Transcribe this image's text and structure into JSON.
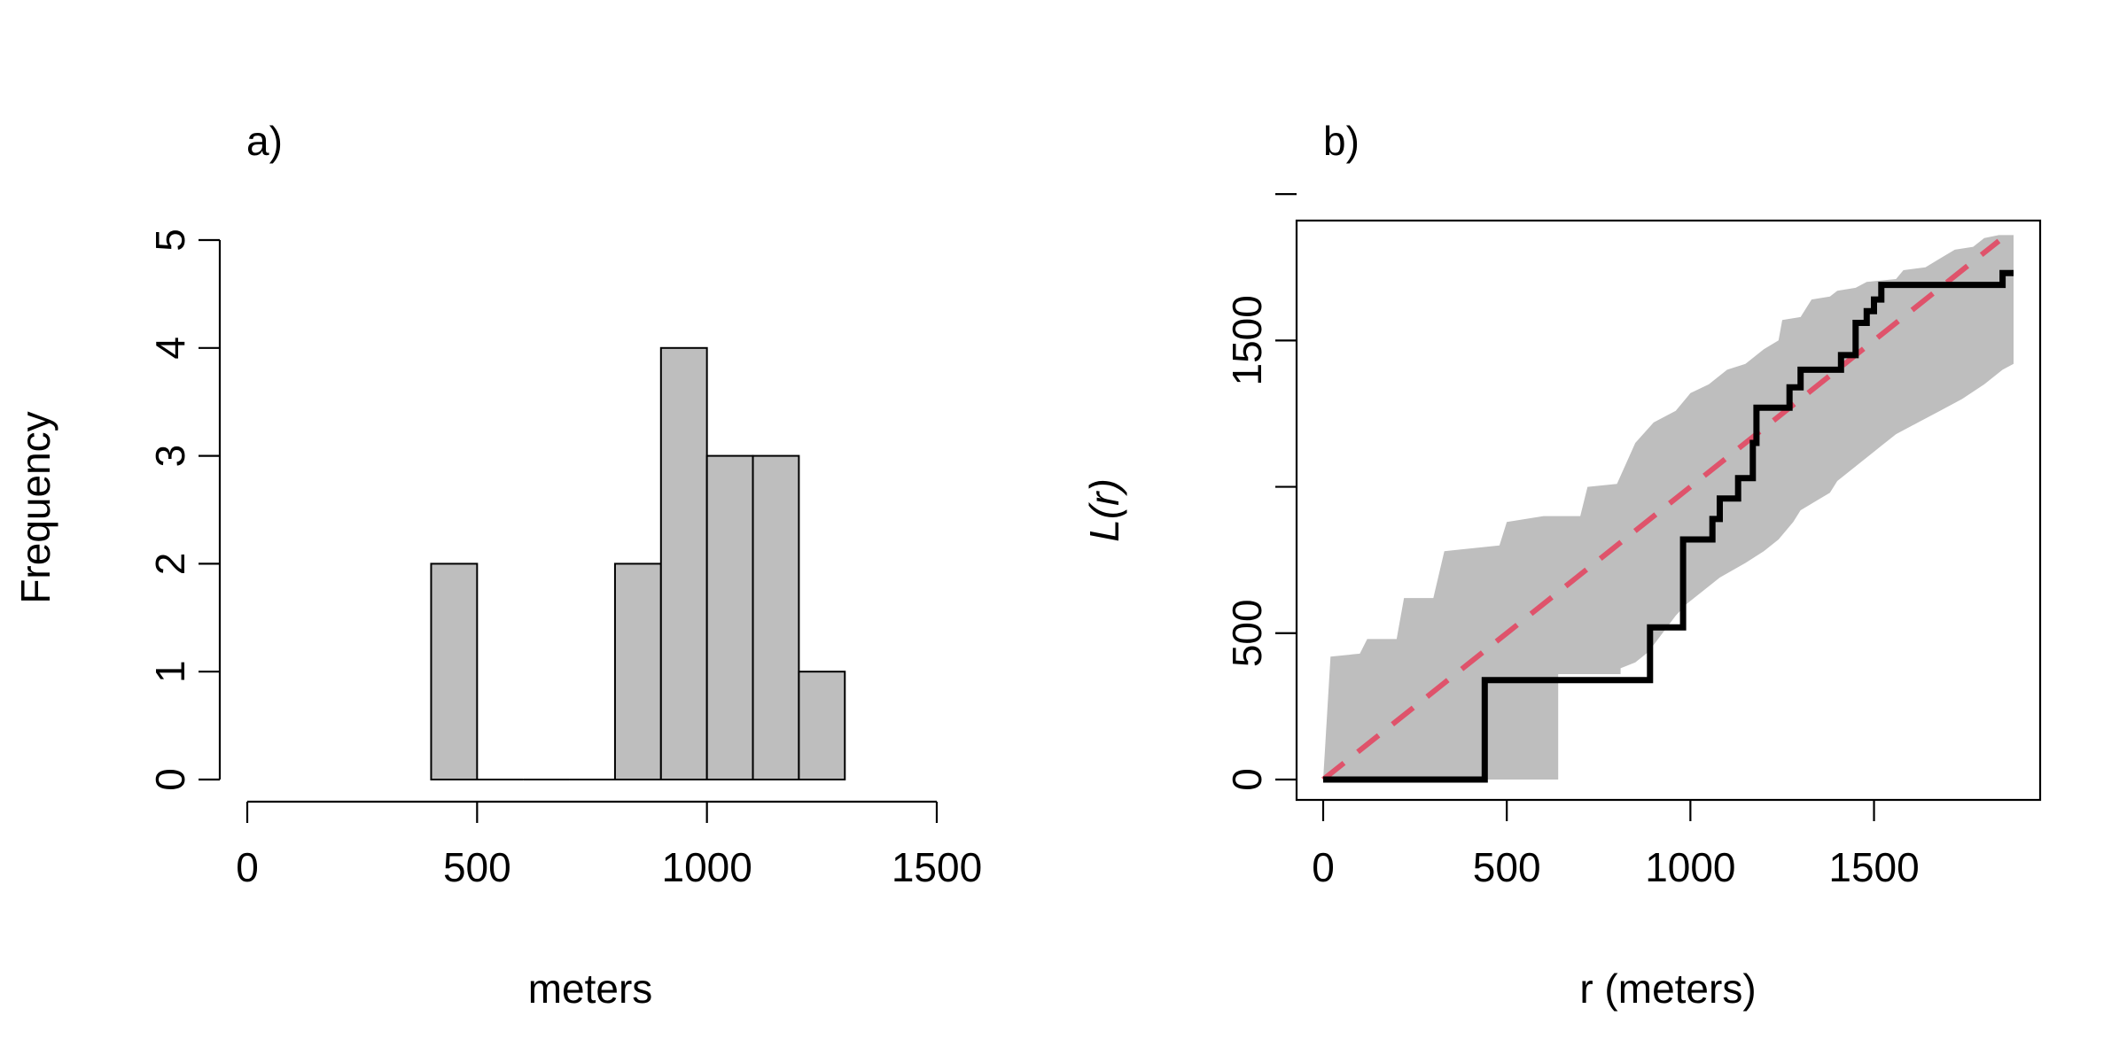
{
  "chart_data": [
    {
      "type": "bar",
      "panel_label": "a)",
      "xlabel": "meters",
      "ylabel": "Frequency",
      "xlim": [
        0,
        1500
      ],
      "ylim": [
        0,
        5
      ],
      "xticks": [
        0,
        500,
        1000,
        1500
      ],
      "yticks": [
        0,
        1,
        2,
        3,
        4,
        5
      ],
      "bin_width": 100,
      "bins": [
        {
          "from": 400,
          "to": 500,
          "count": 2
        },
        {
          "from": 500,
          "to": 600,
          "count": 0
        },
        {
          "from": 600,
          "to": 700,
          "count": 0
        },
        {
          "from": 700,
          "to": 800,
          "count": 0
        },
        {
          "from": 800,
          "to": 900,
          "count": 2
        },
        {
          "from": 900,
          "to": 1000,
          "count": 4
        },
        {
          "from": 1000,
          "to": 1100,
          "count": 3
        },
        {
          "from": 1100,
          "to": 1200,
          "count": 3
        },
        {
          "from": 1200,
          "to": 1300,
          "count": 1
        }
      ],
      "colors": {
        "bar_fill": "#bebebe",
        "bar_stroke": "#000000"
      }
    },
    {
      "type": "line",
      "panel_label": "b)",
      "xlabel": "r (meters)",
      "ylabel": "L(r)",
      "xlim": [
        0,
        1880
      ],
      "ylim": [
        0,
        1840
      ],
      "xticks": [
        0,
        500,
        1000,
        1500
      ],
      "yticks": [
        0,
        500,
        1000,
        1500,
        2000
      ],
      "ytick_labels": [
        "0",
        "500",
        "",
        "1500",
        ""
      ],
      "box": true,
      "series": [
        {
          "kind": "envelope",
          "color": "#bebebe",
          "upper": [
            [
              0,
              0
            ],
            [
              20,
              420
            ],
            [
              100,
              430
            ],
            [
              120,
              480
            ],
            [
              200,
              480
            ],
            [
              220,
              620
            ],
            [
              300,
              620
            ],
            [
              330,
              780
            ],
            [
              480,
              800
            ],
            [
              500,
              880
            ],
            [
              600,
              900
            ],
            [
              700,
              900
            ],
            [
              720,
              1000
            ],
            [
              800,
              1010
            ],
            [
              850,
              1150
            ],
            [
              900,
              1220
            ],
            [
              960,
              1260
            ],
            [
              1000,
              1320
            ],
            [
              1050,
              1350
            ],
            [
              1100,
              1400
            ],
            [
              1150,
              1420
            ],
            [
              1200,
              1470
            ],
            [
              1240,
              1500
            ],
            [
              1250,
              1570
            ],
            [
              1300,
              1580
            ],
            [
              1330,
              1640
            ],
            [
              1380,
              1650
            ],
            [
              1400,
              1670
            ],
            [
              1450,
              1680
            ],
            [
              1480,
              1700
            ],
            [
              1560,
              1710
            ],
            [
              1580,
              1740
            ],
            [
              1640,
              1750
            ],
            [
              1680,
              1780
            ],
            [
              1720,
              1810
            ],
            [
              1770,
              1820
            ],
            [
              1800,
              1850
            ],
            [
              1840,
              1860
            ],
            [
              1870,
              1860
            ],
            [
              1880,
              1860
            ]
          ],
          "lower": [
            [
              0,
              0
            ],
            [
              640,
              0
            ],
            [
              640,
              360
            ],
            [
              810,
              360
            ],
            [
              810,
              380
            ],
            [
              850,
              400
            ],
            [
              880,
              430
            ],
            [
              900,
              460
            ],
            [
              960,
              560
            ],
            [
              990,
              600
            ],
            [
              1040,
              650
            ],
            [
              1080,
              690
            ],
            [
              1150,
              740
            ],
            [
              1200,
              780
            ],
            [
              1240,
              820
            ],
            [
              1280,
              880
            ],
            [
              1300,
              920
            ],
            [
              1340,
              950
            ],
            [
              1380,
              980
            ],
            [
              1400,
              1020
            ],
            [
              1440,
              1060
            ],
            [
              1480,
              1100
            ],
            [
              1520,
              1140
            ],
            [
              1560,
              1180
            ],
            [
              1620,
              1220
            ],
            [
              1680,
              1260
            ],
            [
              1740,
              1300
            ],
            [
              1800,
              1350
            ],
            [
              1850,
              1400
            ],
            [
              1880,
              1420
            ]
          ]
        },
        {
          "kind": "theoretical",
          "style": "dashed",
          "color": "#df536b",
          "points": [
            [
              0,
              0
            ],
            [
              1840,
              1840
            ]
          ]
        },
        {
          "kind": "observed",
          "style": "step",
          "color": "#000000",
          "points": [
            [
              0,
              0
            ],
            [
              440,
              0
            ],
            [
              440,
              340
            ],
            [
              890,
              340
            ],
            [
              890,
              520
            ],
            [
              980,
              520
            ],
            [
              980,
              820
            ],
            [
              1060,
              820
            ],
            [
              1060,
              890
            ],
            [
              1080,
              890
            ],
            [
              1080,
              960
            ],
            [
              1130,
              960
            ],
            [
              1130,
              1030
            ],
            [
              1170,
              1030
            ],
            [
              1170,
              1150
            ],
            [
              1180,
              1150
            ],
            [
              1180,
              1270
            ],
            [
              1270,
              1270
            ],
            [
              1270,
              1340
            ],
            [
              1300,
              1340
            ],
            [
              1300,
              1400
            ],
            [
              1410,
              1400
            ],
            [
              1410,
              1450
            ],
            [
              1450,
              1450
            ],
            [
              1450,
              1560
            ],
            [
              1480,
              1560
            ],
            [
              1480,
              1600
            ],
            [
              1500,
              1600
            ],
            [
              1500,
              1640
            ],
            [
              1520,
              1640
            ],
            [
              1520,
              1690
            ],
            [
              1850,
              1690
            ],
            [
              1850,
              1730
            ],
            [
              1880,
              1730
            ]
          ]
        }
      ]
    }
  ]
}
